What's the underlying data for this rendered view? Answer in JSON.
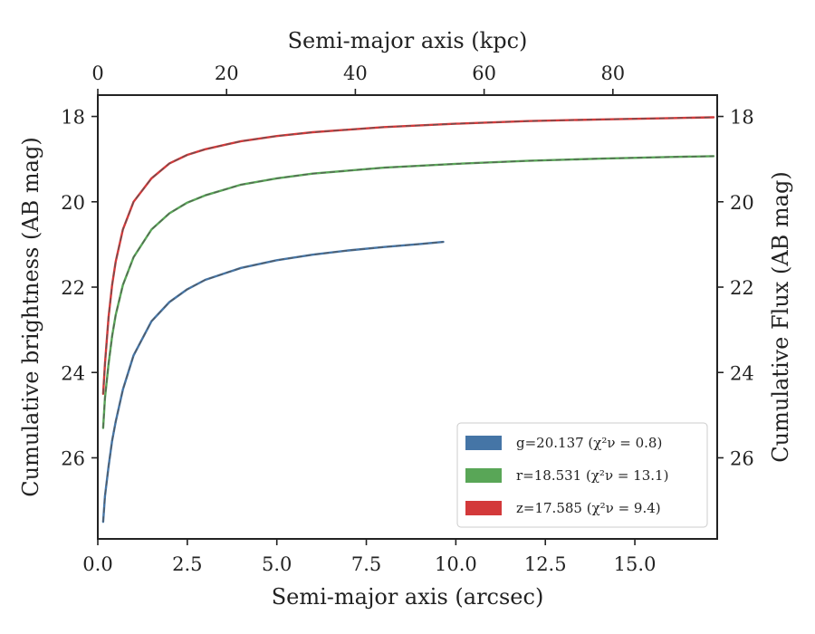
{
  "chart_data": {
    "type": "line",
    "xlabel": "Semi-major axis (arcsec)",
    "ylabel": "Cumulative brightness (AB mag)",
    "top_xlabel": "Semi-major axis (kpc)",
    "right_ylabel": "Cumulative Flux (AB mag)",
    "xlim": [
      0,
      17.3
    ],
    "ylim": [
      27.9,
      17.5
    ],
    "y_inverted": true,
    "top_xlim": [
      0,
      96.2
    ],
    "xticks": [
      {
        "value": 0,
        "label": "0.0"
      },
      {
        "value": 2.5,
        "label": "2.5"
      },
      {
        "value": 5,
        "label": "5.0"
      },
      {
        "value": 7.5,
        "label": "7.5"
      },
      {
        "value": 10,
        "label": "10.0"
      },
      {
        "value": 12.5,
        "label": "12.5"
      },
      {
        "value": 15,
        "label": "15.0"
      }
    ],
    "top_xticks": [
      {
        "value": 0,
        "label": "0"
      },
      {
        "value": 20,
        "label": "20"
      },
      {
        "value": 40,
        "label": "40"
      },
      {
        "value": 60,
        "label": "60"
      },
      {
        "value": 80,
        "label": "80"
      }
    ],
    "yticks": [
      {
        "value": 18,
        "label": "18"
      },
      {
        "value": 20,
        "label": "20"
      },
      {
        "value": 22,
        "label": "22"
      },
      {
        "value": 24,
        "label": "24"
      },
      {
        "value": 26,
        "label": "26"
      }
    ],
    "grid": false,
    "legend_position": "bottom-right",
    "series": [
      {
        "band": "g",
        "name": "g=20.137",
        "chi_label": "(χ²ν = 0.8)",
        "color": "#4575a6",
        "x": [
          0.15,
          0.2,
          0.3,
          0.4,
          0.5,
          0.7,
          1.0,
          1.5,
          2.0,
          2.5,
          3.0,
          4.0,
          5.0,
          6.0,
          7.0,
          8.0,
          9.0,
          9.65
        ],
        "y": [
          27.5,
          26.9,
          26.2,
          25.6,
          25.15,
          24.4,
          23.6,
          22.8,
          22.35,
          22.05,
          21.83,
          21.55,
          21.37,
          21.24,
          21.14,
          21.06,
          20.99,
          20.94
        ]
      },
      {
        "band": "r",
        "name": "r=18.531",
        "chi_label": "(χ²ν = 13.1)",
        "color": "#59a657",
        "x": [
          0.15,
          0.2,
          0.3,
          0.4,
          0.5,
          0.7,
          1.0,
          1.5,
          2.0,
          2.5,
          3.0,
          4.0,
          5.0,
          6.0,
          8.0,
          10.0,
          12.0,
          14.0,
          16.0,
          17.2
        ],
        "y": [
          25.3,
          24.6,
          23.8,
          23.15,
          22.65,
          21.95,
          21.3,
          20.65,
          20.27,
          20.02,
          19.85,
          19.6,
          19.45,
          19.34,
          19.2,
          19.11,
          19.04,
          18.99,
          18.95,
          18.93
        ]
      },
      {
        "band": "z",
        "name": "z=17.585",
        "chi_label": "(χ²ν = 9.4)",
        "color": "#d3393a",
        "x": [
          0.15,
          0.2,
          0.3,
          0.4,
          0.5,
          0.7,
          1.0,
          1.5,
          2.0,
          2.5,
          3.0,
          4.0,
          5.0,
          6.0,
          8.0,
          10.0,
          12.0,
          14.0,
          16.0,
          17.2
        ],
        "y": [
          24.5,
          23.8,
          22.7,
          21.95,
          21.4,
          20.65,
          20.0,
          19.45,
          19.1,
          18.9,
          18.77,
          18.58,
          18.46,
          18.37,
          18.25,
          18.17,
          18.11,
          18.07,
          18.04,
          18.02
        ]
      }
    ]
  }
}
